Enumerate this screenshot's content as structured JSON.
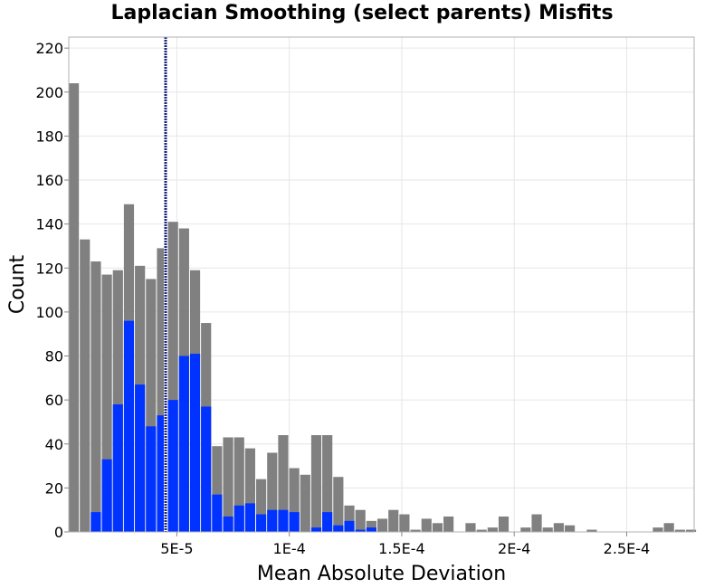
{
  "chart_data": {
    "type": "bar",
    "title": "Laplacian Smoothing (select parents) Misfits",
    "xlabel": "Mean Absolute Deviation",
    "ylabel": "Count",
    "xlim": [
      1.95e-06,
      0.00028
    ],
    "ylim": [
      0,
      225
    ],
    "grid": true,
    "x_ticks": [
      5e-05,
      0.0001,
      0.00015,
      0.0002,
      0.00025
    ],
    "x_tick_labels": [
      "5E-5",
      "1E-4",
      "1.5E-4",
      "2E-4",
      "2.5E-4"
    ],
    "y_ticks": [
      0,
      20,
      40,
      60,
      80,
      100,
      120,
      140,
      160,
      180,
      200,
      220
    ],
    "y_tick_labels": [
      "0",
      "20",
      "40",
      "60",
      "80",
      "100",
      "120",
      "140",
      "160",
      "180",
      "200",
      "220"
    ],
    "bin_width": 4.9e-06,
    "bin_centers": [
      4.4e-06,
      9.3e-06,
      1.42e-05,
      1.91e-05,
      2.4e-05,
      2.89e-05,
      3.38e-05,
      3.87e-05,
      4.36e-05,
      4.85e-05,
      5.34e-05,
      5.83e-05,
      6.32e-05,
      6.81e-05,
      7.3e-05,
      7.79e-05,
      8.28e-05,
      8.77e-05,
      9.26e-05,
      9.75e-05,
      0.0001024,
      0.0001073,
      0.0001122,
      0.0001171,
      0.000122,
      0.0001269,
      0.0001318,
      0.0001367,
      0.0001416,
      0.0001465,
      0.0001514,
      0.0001563,
      0.0001612,
      0.0001661,
      0.000171,
      0.0001759,
      0.0001808,
      0.0001857,
      0.0001906,
      0.0001955,
      0.0002004,
      0.0002053,
      0.0002102,
      0.0002151,
      0.00022,
      0.0002249,
      0.0002298,
      0.0002347,
      0.0002396,
      0.0002445,
      0.0002494,
      0.0002543,
      0.0002592,
      0.0002641,
      0.000269,
      0.0002739,
      0.0002788
    ],
    "series": [
      {
        "color": "#808080",
        "values": [
          204,
          133,
          123,
          117,
          119,
          149,
          121,
          115,
          129,
          141,
          138,
          119,
          95,
          39,
          43,
          43,
          38,
          24,
          36,
          44,
          29,
          26,
          44,
          44,
          25,
          12,
          10,
          5,
          6,
          10,
          8,
          1,
          6,
          4,
          7,
          0,
          4,
          1,
          2,
          7,
          0,
          2,
          8,
          2,
          4,
          3,
          0,
          1,
          0,
          0,
          0,
          0,
          0,
          2,
          4,
          1,
          1
        ]
      },
      {
        "color": "#0033ff",
        "values": [
          0,
          0,
          9,
          33,
          58,
          96,
          67,
          48,
          53,
          60,
          80,
          81,
          57,
          17,
          7,
          12,
          13,
          8,
          10,
          10,
          9,
          0,
          2,
          9,
          3,
          5,
          1,
          2,
          0,
          0,
          0,
          0,
          0,
          0,
          0,
          0,
          0,
          0,
          0,
          0,
          0,
          0,
          0,
          0,
          0,
          0,
          0,
          0,
          0,
          0,
          0,
          0,
          0,
          0,
          0,
          0,
          0
        ]
      }
    ],
    "reference_line": {
      "x": 4.5e-05,
      "color": "#1a237e",
      "style": "dotted"
    }
  }
}
